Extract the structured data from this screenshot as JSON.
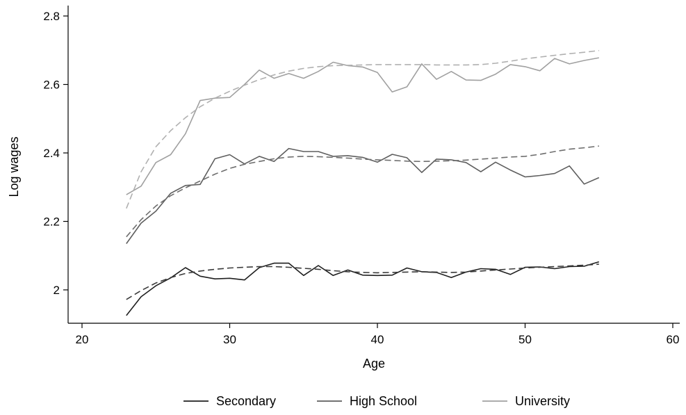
{
  "chart_data": {
    "type": "line",
    "title": "",
    "xlabel": "Age",
    "ylabel": "Log wages",
    "xlim": [
      20,
      60
    ],
    "ylim": [
      1.9,
      2.8
    ],
    "xticks": [
      20,
      30,
      40,
      50,
      60
    ],
    "yticks": [
      2,
      2.2,
      2.4,
      2.6,
      2.8
    ],
    "ytick_labels": [
      "2",
      "2.2",
      "2.4",
      "2.6",
      "2.8"
    ],
    "grid": false,
    "legend_position": "bottom",
    "x": [
      23,
      24,
      25,
      26,
      27,
      28,
      29,
      30,
      31,
      32,
      33,
      34,
      35,
      36,
      37,
      38,
      39,
      40,
      41,
      42,
      43,
      44,
      45,
      46,
      47,
      48,
      49,
      50,
      51,
      52,
      53,
      54,
      55
    ],
    "series": [
      {
        "name": "Secondary",
        "color": "#1f1f1f",
        "style": "solid",
        "values": [
          1.925,
          1.98,
          2.012,
          2.035,
          2.065,
          2.04,
          2.032,
          2.034,
          2.029,
          2.065,
          2.078,
          2.078,
          2.042,
          2.071,
          2.042,
          2.058,
          2.043,
          2.042,
          2.043,
          2.064,
          2.053,
          2.051,
          2.036,
          2.052,
          2.062,
          2.06,
          2.045,
          2.066,
          2.067,
          2.062,
          2.068,
          2.069,
          2.082
        ]
      },
      {
        "name": "",
        "color": "#3a3a3a",
        "style": "dashed",
        "values": [
          1.972,
          1.998,
          2.02,
          2.036,
          2.048,
          2.055,
          2.06,
          2.064,
          2.066,
          2.068,
          2.068,
          2.066,
          2.063,
          2.06,
          2.056,
          2.053,
          2.051,
          2.05,
          2.051,
          2.052,
          2.053,
          2.052,
          2.051,
          2.052,
          2.055,
          2.058,
          2.061,
          2.064,
          2.066,
          2.068,
          2.07,
          2.072,
          2.075
        ]
      },
      {
        "name": "High School",
        "color": "#5e5e5e",
        "style": "solid",
        "values": [
          2.135,
          2.195,
          2.23,
          2.282,
          2.305,
          2.308,
          2.383,
          2.395,
          2.368,
          2.39,
          2.375,
          2.413,
          2.404,
          2.404,
          2.39,
          2.392,
          2.387,
          2.373,
          2.396,
          2.386,
          2.343,
          2.382,
          2.38,
          2.372,
          2.345,
          2.373,
          2.35,
          2.33,
          2.334,
          2.34,
          2.362,
          2.309,
          2.328
        ]
      },
      {
        "name": "",
        "color": "#6e6e6e",
        "style": "dashed",
        "values": [
          2.155,
          2.205,
          2.245,
          2.275,
          2.298,
          2.318,
          2.338,
          2.355,
          2.367,
          2.375,
          2.383,
          2.388,
          2.39,
          2.389,
          2.387,
          2.385,
          2.382,
          2.38,
          2.378,
          2.376,
          2.375,
          2.376,
          2.377,
          2.379,
          2.382,
          2.385,
          2.388,
          2.39,
          2.396,
          2.404,
          2.411,
          2.415,
          2.42
        ]
      },
      {
        "name": "University",
        "color": "#a0a0a0",
        "style": "solid",
        "values": [
          2.278,
          2.303,
          2.372,
          2.395,
          2.456,
          2.553,
          2.56,
          2.562,
          2.6,
          2.642,
          2.618,
          2.632,
          2.618,
          2.638,
          2.665,
          2.655,
          2.651,
          2.635,
          2.578,
          2.593,
          2.66,
          2.615,
          2.638,
          2.613,
          2.612,
          2.63,
          2.658,
          2.652,
          2.64,
          2.676,
          2.66,
          2.67,
          2.678
        ]
      },
      {
        "name": "",
        "color": "#b0b0b0",
        "style": "dashed",
        "values": [
          2.238,
          2.345,
          2.418,
          2.465,
          2.503,
          2.535,
          2.56,
          2.58,
          2.598,
          2.614,
          2.628,
          2.639,
          2.647,
          2.652,
          2.655,
          2.656,
          2.657,
          2.658,
          2.658,
          2.658,
          2.658,
          2.657,
          2.657,
          2.657,
          2.658,
          2.662,
          2.668,
          2.675,
          2.68,
          2.685,
          2.69,
          2.694,
          2.699
        ]
      }
    ]
  }
}
